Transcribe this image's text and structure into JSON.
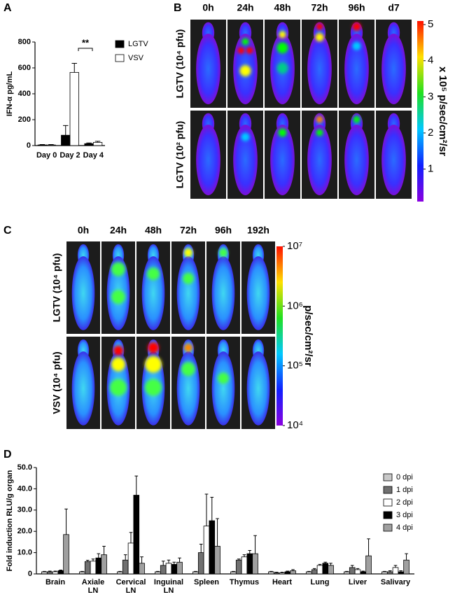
{
  "chart_data": [
    {
      "type": "bar",
      "panel_label": "A",
      "ylabel": "IFN-α pg/mL",
      "annotation": "**",
      "categories": [
        "Day 0",
        "Day 2",
        "Day 4"
      ],
      "series": [
        {
          "name": "LGTV",
          "color": "#000000",
          "values": [
            5,
            80,
            15
          ],
          "errors": [
            3,
            75,
            5
          ]
        },
        {
          "name": "VSV",
          "color": "#ffffff",
          "values": [
            5,
            565,
            25
          ],
          "errors": [
            3,
            70,
            8
          ]
        }
      ],
      "ylim": [
        0,
        800
      ],
      "yticks": [
        0,
        200,
        400,
        600,
        800
      ],
      "grid": false
    },
    {
      "type": "image_grid",
      "panel_label": "B",
      "columns": [
        "0h",
        "24h",
        "48h",
        "72h",
        "96h",
        "d7"
      ],
      "rows": [
        "LGTV (10⁴ pfu)",
        "LGTV (10² pfu)"
      ],
      "colorbar": {
        "label": "x 10⁵ p/sec/cm²/sr",
        "lim": [
          0.1,
          5.1
        ],
        "ticks": [
          1,
          2,
          3,
          4,
          5
        ],
        "log": false
      }
    },
    {
      "type": "image_grid",
      "panel_label": "C",
      "columns": [
        "0h",
        "24h",
        "48h",
        "72h",
        "96h",
        "192h"
      ],
      "rows": [
        "LGTV (10⁴ pfu)",
        "VSV (10⁴ pfu)"
      ],
      "colorbar": {
        "label": "p/sec/cm²/sr",
        "lim": [
          10000,
          10000000
        ],
        "log": true,
        "ticks": [
          {
            "value": 10000,
            "label": "10⁴"
          },
          {
            "value": 100000,
            "label": "10⁵"
          },
          {
            "value": 1000000,
            "label": "10⁶"
          },
          {
            "value": 10000000,
            "label": "10⁷"
          }
        ]
      }
    },
    {
      "type": "bar",
      "panel_label": "D",
      "ylabel": "Fold induction RLU/g organ",
      "categories": [
        "Brain",
        "Axiale LN",
        "Cervical LN",
        "Inguinal LN",
        "Spleen",
        "Thymus",
        "Heart",
        "Lung",
        "Liver",
        "Salivary"
      ],
      "series": [
        {
          "name": "0 dpi",
          "color": "#c8c8c8",
          "values": [
            1,
            1,
            1,
            1,
            1,
            1,
            1,
            1,
            1,
            1
          ],
          "errors": [
            0.2,
            0.2,
            0.2,
            0.2,
            0.2,
            0.2,
            0.2,
            0.2,
            0.2,
            0.2
          ]
        },
        {
          "name": "1 dpi",
          "color": "#707070",
          "values": [
            1,
            5.8,
            6.5,
            4,
            10,
            6.5,
            0.5,
            2,
            3,
            1
          ],
          "errors": [
            0.3,
            0.6,
            2.5,
            2,
            4,
            0.5,
            0.3,
            0.5,
            1,
            0.5
          ]
        },
        {
          "name": "2 dpi",
          "color": "#ffffff",
          "values": [
            1,
            6,
            14.5,
            5,
            22.5,
            8,
            0.5,
            4,
            2,
            3
          ],
          "errors": [
            0.3,
            1,
            5,
            1.5,
            15,
            1,
            0.3,
            0.5,
            0.5,
            1
          ]
        },
        {
          "name": "3 dpi",
          "color": "#000000",
          "values": [
            1.5,
            7.5,
            37,
            4.5,
            25,
            9.5,
            1,
            5,
            1,
            1
          ],
          "errors": [
            0.3,
            2,
            9,
            1,
            11,
            1.5,
            0.3,
            0.5,
            0.3,
            0.5
          ]
        },
        {
          "name": "4 dpi",
          "color": "#a0a0a0",
          "values": [
            18.5,
            9,
            5,
            5.5,
            13,
            9.5,
            1.5,
            4,
            8.5,
            6.5
          ],
          "errors": [
            12,
            4,
            3,
            2,
            13,
            8.5,
            0.5,
            1,
            8,
            3
          ]
        }
      ],
      "ylim": [
        0,
        50
      ],
      "yticks": [
        0,
        {
          "value": 10,
          "label": "10.0"
        },
        {
          "value": 20,
          "label": "20.0"
        },
        {
          "value": 30,
          "label": "30.0"
        },
        {
          "value": 40,
          "label": "40.0"
        },
        {
          "value": 50,
          "label": "50.0"
        }
      ],
      "grid": false
    }
  ]
}
